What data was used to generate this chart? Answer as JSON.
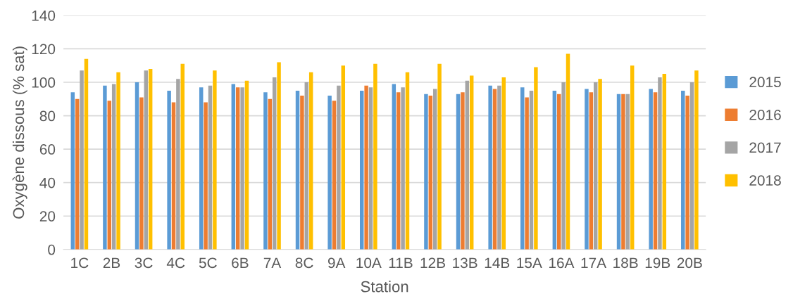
{
  "chart_data": {
    "type": "bar",
    "xlabel": "Station",
    "ylabel": "Oxygène dissous (% sat)",
    "categories": [
      "1C",
      "2B",
      "3C",
      "4C",
      "5C",
      "6B",
      "7A",
      "8C",
      "9A",
      "10A",
      "11B",
      "12B",
      "13B",
      "14B",
      "15A",
      "16A",
      "17A",
      "18B",
      "19B",
      "20B"
    ],
    "series": [
      {
        "name": "2015",
        "color": "#5b9bd5",
        "values": [
          94,
          98,
          100,
          95,
          97,
          99,
          94,
          95,
          92,
          95,
          99,
          93,
          93,
          98,
          97,
          95,
          96,
          93,
          96,
          95
        ]
      },
      {
        "name": "2016",
        "color": "#ed7d31",
        "values": [
          90,
          89,
          91,
          88,
          88,
          97,
          90,
          92,
          89,
          98,
          94,
          92,
          94,
          96,
          91,
          93,
          94,
          93,
          94,
          92
        ]
      },
      {
        "name": "2017",
        "color": "#a5a5a5",
        "values": [
          107,
          99,
          107,
          102,
          98,
          97,
          103,
          100,
          98,
          97,
          97,
          96,
          101,
          98,
          95,
          100,
          100,
          93,
          103,
          100
        ]
      },
      {
        "name": "2018",
        "color": "#ffc000",
        "values": [
          114,
          106,
          108,
          111,
          107,
          101,
          112,
          106,
          110,
          111,
          106,
          111,
          104,
          103,
          109,
          117,
          102,
          110,
          105,
          107
        ]
      }
    ],
    "ylim": [
      0,
      140
    ],
    "yticks": [
      0,
      20,
      40,
      60,
      80,
      100,
      120,
      140
    ],
    "grid": "y",
    "legend": "right"
  }
}
